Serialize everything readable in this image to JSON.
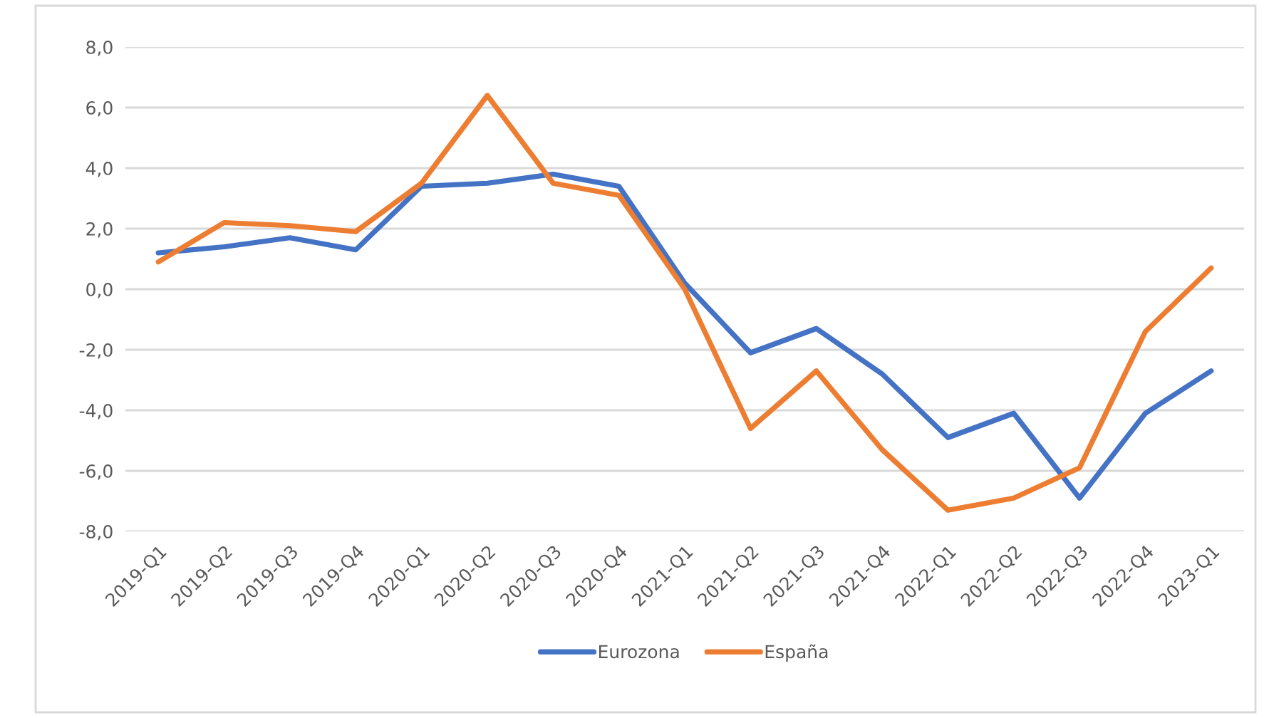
{
  "chart_data": {
    "type": "line",
    "categories": [
      "2019-Q1",
      "2019-Q2",
      "2019-Q3",
      "2019-Q4",
      "2020-Q1",
      "2020-Q2",
      "2020-Q3",
      "2020-Q4",
      "2021-Q1",
      "2021-Q2",
      "2021-Q3",
      "2021-Q4",
      "2022-Q1",
      "2022-Q2",
      "2022-Q3",
      "2022-Q4",
      "2023-Q1"
    ],
    "series": [
      {
        "name": "Eurozona",
        "color": "#4472c4",
        "values": [
          1.2,
          1.4,
          1.7,
          1.3,
          3.4,
          3.5,
          3.8,
          3.4,
          0.2,
          -2.1,
          -1.3,
          -2.8,
          -4.9,
          -4.1,
          -6.9,
          -4.1,
          -2.7
        ]
      },
      {
        "name": "España",
        "color": "#ed7d31",
        "values": [
          0.9,
          2.2,
          2.1,
          1.9,
          3.5,
          6.4,
          3.5,
          3.1,
          0.0,
          -4.6,
          -2.7,
          -5.3,
          -7.3,
          -6.9,
          -5.9,
          -1.4,
          0.7
        ]
      }
    ],
    "ylim": [
      -8,
      8
    ],
    "yticks": [
      {
        "value": -8,
        "label": "-8,0"
      },
      {
        "value": -6,
        "label": "-6,0"
      },
      {
        "value": -4,
        "label": "-4,0"
      },
      {
        "value": -2,
        "label": "-2,0"
      },
      {
        "value": 0,
        "label": "0,0"
      },
      {
        "value": 2,
        "label": "2,0"
      },
      {
        "value": 4,
        "label": "4,0"
      },
      {
        "value": 6,
        "label": "6,0"
      },
      {
        "value": 8,
        "label": "8,0"
      }
    ],
    "grid": "y",
    "legend": "bottom",
    "marker": "none",
    "line_style": "solid"
  }
}
